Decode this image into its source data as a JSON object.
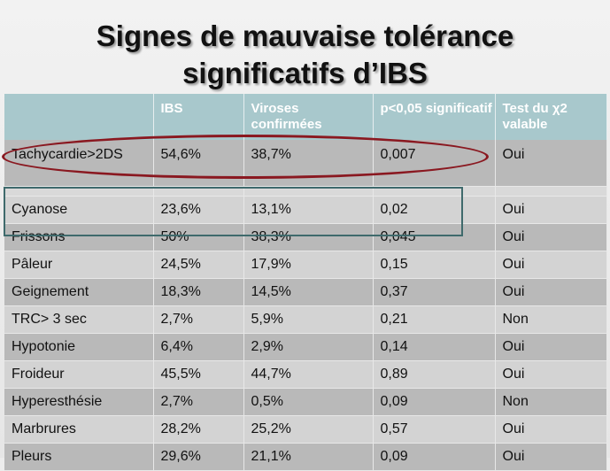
{
  "title": {
    "line1": "Signes de mauvaise tolérance",
    "line2": "significatifs d’IBS"
  },
  "headers": [
    "",
    "IBS",
    "Viroses confirmées",
    "p<0,05 significatif",
    "Test du χ2 valable"
  ],
  "rows": [
    {
      "label": "Tachycardie>2DS",
      "ibs": "54,6%",
      "viroses": "38,7%",
      "p": "0,007",
      "test": "Oui"
    },
    {
      "label": "Cyanose",
      "ibs": "23,6%",
      "viroses": "13,1%",
      "p": "0,02",
      "test": "Oui"
    },
    {
      "label": "Frissons",
      "ibs": "50%",
      "viroses": "38,3%",
      "p": "0,045",
      "test": "Oui"
    },
    {
      "label": "Pâleur",
      "ibs": "24,5%",
      "viroses": "17,9%",
      "p": "0,15",
      "test": "Oui"
    },
    {
      "label": "Geignement",
      "ibs": "18,3%",
      "viroses": "14,5%",
      "p": "0,37",
      "test": "Oui"
    },
    {
      "label": "TRC> 3 sec",
      "ibs": "2,7%",
      "viroses": "5,9%",
      "p": "0,21",
      "test": "Non"
    },
    {
      "label": "Hypotonie",
      "ibs": "6,4%",
      "viroses": "2,9%",
      "p": "0,14",
      "test": "Oui"
    },
    {
      "label": "Froideur",
      "ibs": "45,5%",
      "viroses": "44,7%",
      "p": "0,89",
      "test": "Oui"
    },
    {
      "label": "Hyperesthésie",
      "ibs": "2,7%",
      "viroses": "0,5%",
      "p": "0,09",
      "test": "Non"
    },
    {
      "label": "Marbrures",
      "ibs": "28,2%",
      "viroses": "25,2%",
      "p": "0,57",
      "test": "Oui"
    },
    {
      "label": "Pleurs",
      "ibs": "29,6%",
      "viroses": "21,1%",
      "p": "0,09",
      "test": "Oui"
    }
  ],
  "colors": {
    "header_bg": "#a8c8cc",
    "row_light": "#d3d3d3",
    "row_dark": "#b9b9b9",
    "ellipse": "#8a1820",
    "box": "#3f6a6c"
  }
}
